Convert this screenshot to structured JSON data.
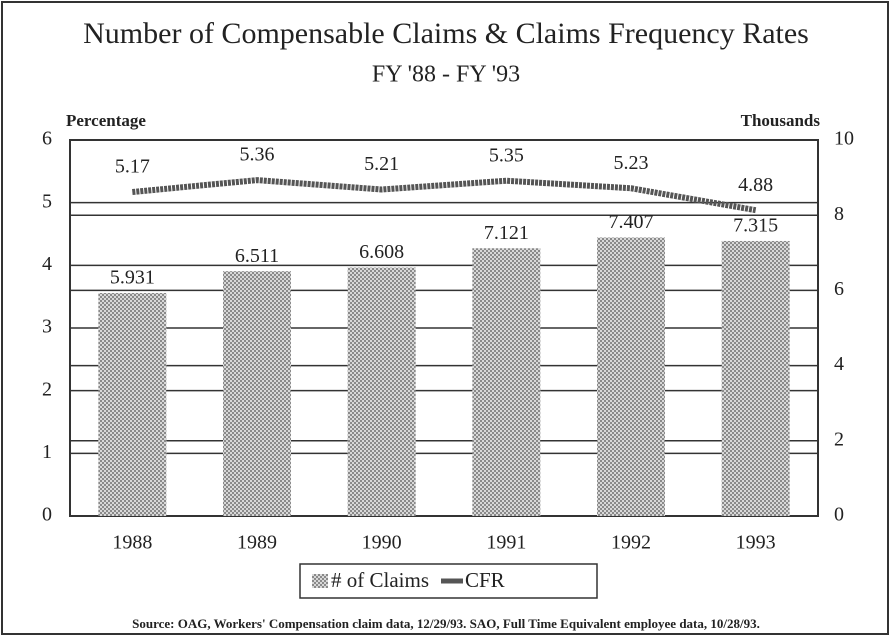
{
  "chart_data": {
    "type": "combo",
    "title": "Number of Compensable Claims & Claims Frequency Rates",
    "subtitle": "FY '88 - FY '93",
    "y_label": "Percentage",
    "y2_label": "Thousands",
    "categories": [
      "1988",
      "1989",
      "1990",
      "1991",
      "1992",
      "1993"
    ],
    "series": [
      {
        "name": "# of Claims",
        "type": "bar",
        "axis": "y2",
        "color": "#8a8a8a",
        "values": [
          5.931,
          6.511,
          6.608,
          7.121,
          7.407,
          7.315
        ]
      },
      {
        "name": "CFR",
        "type": "line",
        "axis": "y",
        "color": "#555555",
        "values": [
          5.17,
          5.36,
          5.21,
          5.35,
          5.23,
          4.88
        ]
      }
    ],
    "ylim": [
      0,
      6
    ],
    "yticks": [
      0,
      1,
      2,
      3,
      4,
      5,
      6
    ],
    "y2lim": [
      0,
      10
    ],
    "y2ticks": [
      0,
      2,
      4,
      6,
      8,
      10
    ],
    "grid": true,
    "legend": "bottom",
    "source": "Source: OAG, Workers' Compensation claim data, 12/29/93.  SAO,  Full Time Equivalent employee data, 10/28/93."
  }
}
